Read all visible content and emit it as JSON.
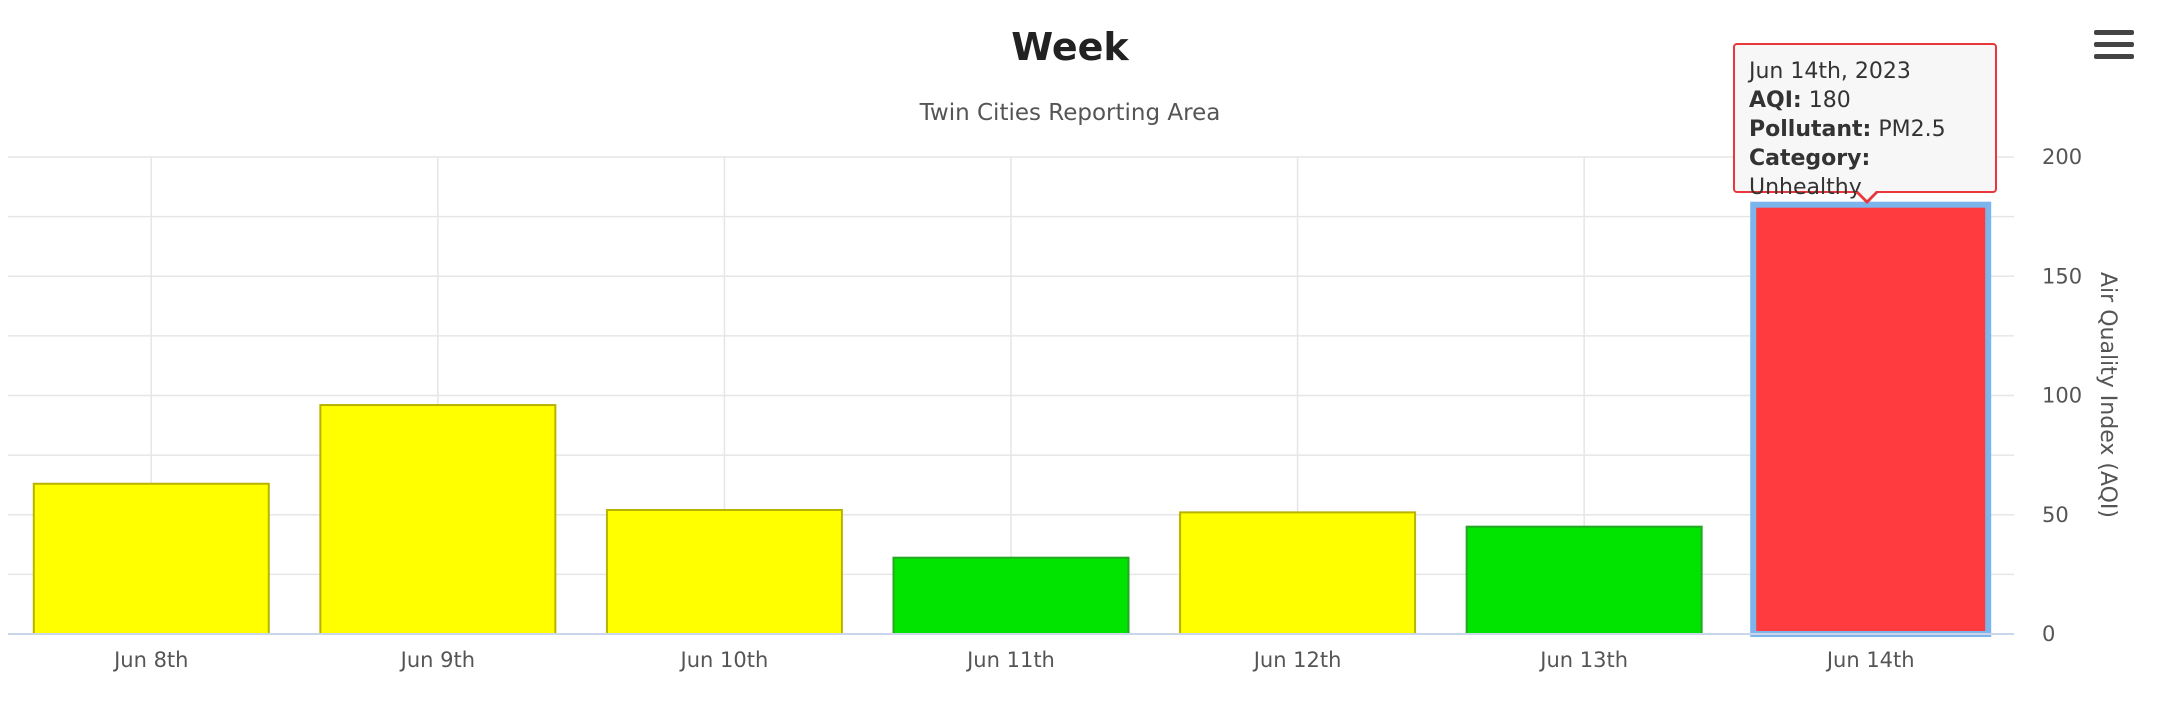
{
  "chart_data": {
    "type": "bar",
    "title": "Week",
    "subtitle": "Twin Cities Reporting Area",
    "ylabel": "Air Quality Index (AQI)",
    "ylim": [
      0,
      200
    ],
    "yticks": [
      0,
      50,
      100,
      150,
      200
    ],
    "categories": [
      "Jun 8th",
      "Jun 9th",
      "Jun 10th",
      "Jun 11th",
      "Jun 12th",
      "Jun 13th",
      "Jun 14th"
    ],
    "values": [
      63,
      96,
      52,
      32,
      51,
      45,
      180
    ],
    "colors": [
      "#ffff00",
      "#ffff00",
      "#ffff00",
      "#00e400",
      "#ffff00",
      "#00e400",
      "#ff3b3f"
    ],
    "grid": true,
    "highlighted_index": 6
  },
  "tooltip": {
    "date": "Jun 14th, 2023",
    "aqi_label": "AQI:",
    "aqi_value": "180",
    "pollutant_label": "Pollutant:",
    "pollutant_value": "PM2.5",
    "category_label": "Category:",
    "category_value": "Unhealthy",
    "border_color": "#e8383d"
  },
  "menu": {
    "icon": "hamburger-menu-icon"
  }
}
